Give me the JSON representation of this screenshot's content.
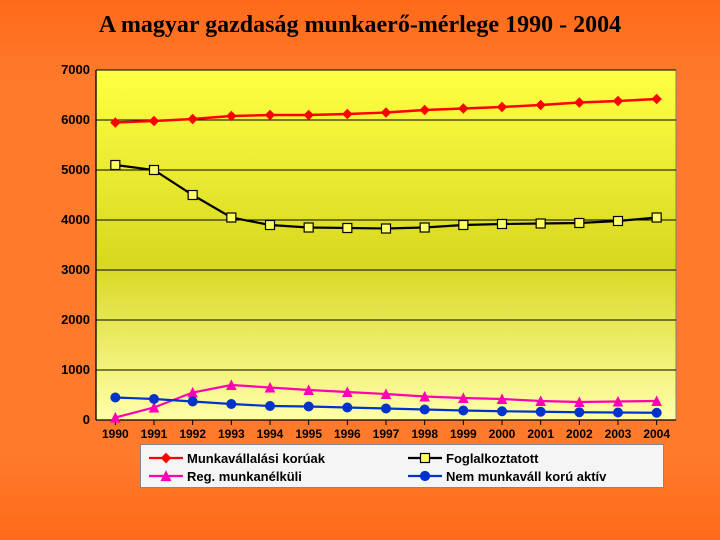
{
  "title": "A magyar gazdaság munkaerő-mérlege 1990 - 2004",
  "chart": {
    "type": "line",
    "background_gradient_top": "#ffff44",
    "background_gradient_mid": "#d8d820",
    "background_gradient_bottom": "#ffffaa",
    "plot_border_color": "#808080",
    "grid_color": "#000000",
    "axis_font_family": "Arial",
    "axis_font_size": 13,
    "axis_font_weight": "bold",
    "x_categories": [
      "1990",
      "1991",
      "1992",
      "1993",
      "1994",
      "1995",
      "1996",
      "1997",
      "1998",
      "1999",
      "2000",
      "2001",
      "2002",
      "2003",
      "2004"
    ],
    "ylim": [
      0,
      7000
    ],
    "ytick_step": 1000,
    "yticks": [
      0,
      1000,
      2000,
      3000,
      4000,
      5000,
      6000,
      7000
    ],
    "series": [
      {
        "key": "munkavallalasi",
        "label": "Munkavállalási korúak",
        "color": "#ff0000",
        "marker": "diamond",
        "marker_fill": "#ff0000",
        "marker_size": 9,
        "line_width": 2.4,
        "values": [
          5950,
          5980,
          6020,
          6080,
          6100,
          6100,
          6120,
          6150,
          6200,
          6230,
          6260,
          6300,
          6350,
          6380,
          6420
        ]
      },
      {
        "key": "foglalkoztatott",
        "label": "Foglalkoztatott",
        "color": "#000000",
        "marker": "square",
        "marker_fill": "#ffff66",
        "marker_size": 9,
        "line_width": 2.2,
        "values": [
          5100,
          5000,
          4500,
          4050,
          3900,
          3850,
          3840,
          3830,
          3850,
          3900,
          3920,
          3930,
          3940,
          3980,
          4050
        ]
      },
      {
        "key": "reg_munkanelkuli",
        "label": "Reg. munkanélküli",
        "color": "#ff00b4",
        "marker": "triangle",
        "marker_fill": "#ff00b4",
        "marker_size": 9,
        "line_width": 2.2,
        "values": [
          50,
          250,
          550,
          700,
          650,
          600,
          560,
          520,
          470,
          440,
          420,
          380,
          360,
          370,
          380
        ]
      },
      {
        "key": "nem_munkavall",
        "label": "Nem munkaváll korú aktív",
        "color": "#0033cc",
        "marker": "circle",
        "marker_fill": "#0033cc",
        "marker_size": 9,
        "line_width": 2.2,
        "values": [
          450,
          420,
          370,
          320,
          280,
          270,
          250,
          230,
          210,
          190,
          175,
          165,
          155,
          150,
          145
        ]
      }
    ]
  },
  "page_bg_top": "#ff6a1a",
  "legend_bg": "#f5f5f5"
}
